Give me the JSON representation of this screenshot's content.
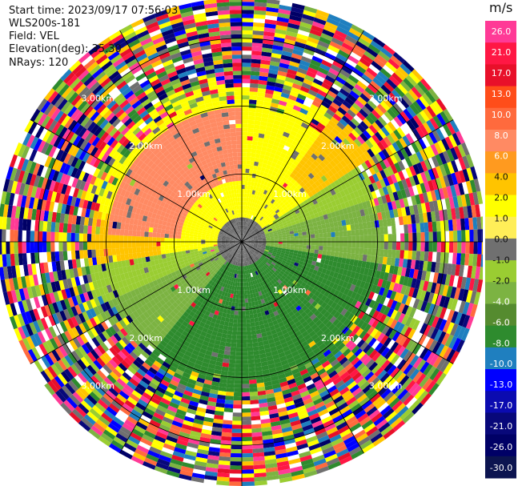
{
  "header": {
    "start_time": "Start time: 2023/09/17 07:56:03",
    "instrument": "WLS200s-181",
    "field": "Field: VEL",
    "elevation": "Elevation(deg): 35.30",
    "nrays": "NRays: 120"
  },
  "colorbar": {
    "unit": "m/s",
    "labels": [
      "26.0",
      "21.0",
      "17.0",
      "13.0",
      "10.0",
      "8.0",
      "6.0",
      "4.0",
      "2.0",
      "1.0",
      "0.0",
      "-1.0",
      "-2.0",
      "-4.0",
      "-6.0",
      "-8.0",
      "-10.0",
      "-13.0",
      "-17.0",
      "-21.0",
      "-26.0",
      "-30.0"
    ],
    "colors": [
      "#ff3a96",
      "#ff1744",
      "#e8102a",
      "#ff4d1a",
      "#ff6a3d",
      "#ff8a63",
      "#ff9a1f",
      "#ffc400",
      "#ffff00",
      "#ffee58",
      "#707070",
      "#9acd32",
      "#7cb342",
      "#558b2f",
      "#2e8b2e",
      "#1f7fbf",
      "#0000ff",
      "#0b0bb0",
      "#08087a",
      "#000066",
      "#0c1450"
    ]
  },
  "chart_data": {
    "type": "ppi",
    "title": "",
    "field": "VEL",
    "units": "m/s",
    "nrays": 120,
    "elevation_deg": 35.3,
    "range_rings_km": [
      1.0,
      2.0,
      3.0
    ],
    "range_ring_labels": [
      "1.00km",
      "2.00km",
      "3.00km"
    ],
    "max_range_km": 3.6,
    "data_summary": {
      "inner_region_km": 2.2,
      "north_sector_velocity_ms": [
        2.0,
        8.0
      ],
      "south_sector_velocity_ms": [
        -8.0,
        -1.0
      ],
      "outer_region": "noisy"
    }
  }
}
